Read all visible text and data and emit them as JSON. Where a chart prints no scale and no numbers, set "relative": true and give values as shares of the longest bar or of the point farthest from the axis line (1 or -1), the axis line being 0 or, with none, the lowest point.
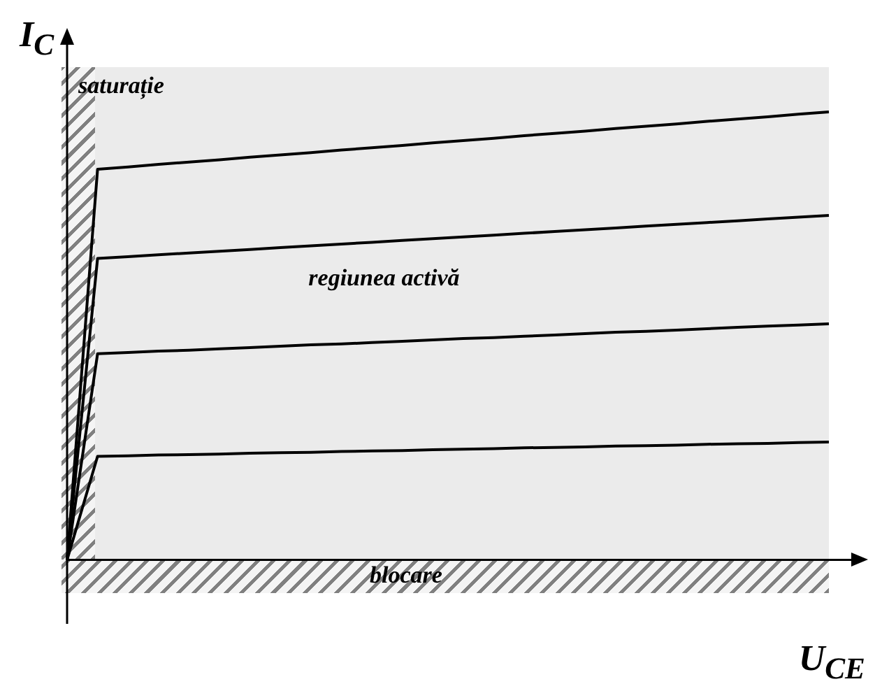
{
  "chart_data": {
    "type": "line",
    "relative": true,
    "xlabel": "U$_{CE}$",
    "ylabel": "I$_{C}$",
    "tick_labels": false,
    "legend": false,
    "marker": "none",
    "line_style": "solid",
    "annotations": [
      "saturație",
      "regiunea activă",
      "blocare"
    ],
    "categories": [
      null,
      null,
      null,
      null,
      null,
      null,
      null,
      null,
      null,
      null,
      null,
      null,
      null,
      null,
      null,
      null,
      null,
      null,
      null,
      null,
      null,
      null,
      null,
      null,
      null,
      null
    ],
    "series": [
      {
        "color": "#000000",
        "values": [
          0,
          0.872,
          0.877,
          0.883,
          0.888,
          0.893,
          0.899,
          0.904,
          0.909,
          0.915,
          0.92,
          0.925,
          0.931,
          0.936,
          0.941,
          0.947,
          0.952,
          0.957,
          0.963,
          0.968,
          0.973,
          0.979,
          0.984,
          0.989,
          0.995,
          1
        ]
      },
      {
        "color": "#000000",
        "values": [
          0,
          0.673,
          0.677,
          0.681,
          0.685,
          0.689,
          0.693,
          0.697,
          0.701,
          0.705,
          0.709,
          0.713,
          0.717,
          0.721,
          0.725,
          0.729,
          0.733,
          0.737,
          0.741,
          0.745,
          0.749,
          0.753,
          0.757,
          0.761,
          0.765,
          0.769
        ]
      },
      {
        "color": "#000000",
        "values": [
          0,
          0.46,
          0.463,
          0.466,
          0.468,
          0.471,
          0.474,
          0.477,
          0.48,
          0.482,
          0.485,
          0.488,
          0.491,
          0.494,
          0.496,
          0.499,
          0.502,
          0.505,
          0.508,
          0.51,
          0.513,
          0.516,
          0.519,
          0.522,
          0.524,
          0.527
        ]
      },
      {
        "color": "#000000",
        "values": [
          0,
          0.231,
          0.232,
          0.234,
          0.235,
          0.236,
          0.238,
          0.239,
          0.24,
          0.242,
          0.243,
          0.244,
          0.246,
          0.247,
          0.248,
          0.25,
          0.251,
          0.252,
          0.254,
          0.255,
          0.256,
          0.258,
          0.259,
          0.26,
          0.262,
          0.263
        ]
      }
    ]
  }
}
